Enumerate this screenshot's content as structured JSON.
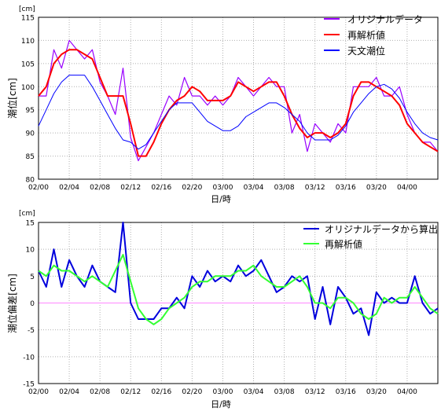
{
  "colors": {
    "original": "#9900ff",
    "reanalysis_top": "#ff0000",
    "astronomical": "#0000ff",
    "original_deviation": "#0000dd",
    "reanalysis_bottom": "#33ff33",
    "zero_line": "#ff88ff",
    "grid": "#b0b0b0"
  },
  "chart_data": [
    {
      "type": "line",
      "unit": "[cm]",
      "ylabel": "潮位[cm]",
      "xlabel": "日/時",
      "ylim": [
        80,
        115
      ],
      "yticks": [
        80,
        85,
        90,
        95,
        100,
        105,
        110,
        115
      ],
      "xlim": [
        0,
        78
      ],
      "x_tick_labels": [
        "02/00",
        "02/04",
        "02/08",
        "02/12",
        "02/16",
        "02/20",
        "03/00",
        "03/04",
        "03/08",
        "03/12",
        "03/16",
        "03/20",
        "04/00"
      ],
      "x_tick_step_hours": 6,
      "grid": true,
      "legend_position": "top-right",
      "series": [
        {
          "name": "オリジナルデータ",
          "color_key": "original",
          "x": [
            0,
            1.5,
            3,
            4.5,
            6,
            7.5,
            9,
            10.5,
            12,
            13.5,
            15,
            16.5,
            18,
            19.5,
            21,
            22.5,
            24,
            25.5,
            27,
            28.5,
            30,
            31.5,
            33,
            34.5,
            36,
            37.5,
            39,
            40.5,
            42,
            43.5,
            45,
            46.5,
            48,
            49.5,
            51,
            52.5,
            54,
            55.5,
            57,
            58.5,
            60,
            61.5,
            63,
            64.5,
            66,
            67.5,
            69,
            70.5,
            72,
            73.5,
            75,
            76.5,
            78
          ],
          "values": [
            98,
            98,
            108,
            104,
            110,
            108,
            106,
            108,
            101,
            98,
            94,
            104,
            89,
            84,
            87,
            90,
            94,
            98,
            96,
            102,
            98,
            98,
            96,
            98,
            96,
            98,
            102,
            100,
            98,
            100,
            102,
            100,
            100,
            90,
            94,
            86,
            92,
            90,
            88,
            92,
            90,
            100,
            100,
            100,
            102,
            98,
            98,
            100,
            94,
            90,
            88,
            88,
            86
          ]
        },
        {
          "name": "再解析値",
          "color_key": "reanalysis_top",
          "x": [
            0,
            1.5,
            3,
            4.5,
            6,
            7.5,
            9,
            10.5,
            12,
            13.5,
            15,
            16.5,
            18,
            19.5,
            21,
            22.5,
            24,
            25.5,
            27,
            28.5,
            30,
            31.5,
            33,
            34.5,
            36,
            37.5,
            39,
            40.5,
            42,
            43.5,
            45,
            46.5,
            48,
            49.5,
            51,
            52.5,
            54,
            55.5,
            57,
            58.5,
            60,
            61.5,
            63,
            64.5,
            66,
            67.5,
            69,
            70.5,
            72,
            73.5,
            75,
            76.5,
            78
          ],
          "values": [
            98,
            100,
            105,
            107,
            108,
            108,
            107,
            106,
            102,
            98,
            98,
            98,
            92,
            85,
            85,
            88,
            92,
            95,
            97,
            98,
            100,
            99,
            97,
            97,
            97,
            98,
            101,
            100,
            99,
            100,
            101,
            101,
            98,
            94,
            91,
            89,
            90,
            90,
            89,
            90,
            92,
            98,
            101,
            101,
            100,
            99,
            98,
            96,
            92,
            90,
            88,
            87,
            86
          ]
        },
        {
          "name": "天文潮位",
          "color_key": "astronomical",
          "x": [
            0,
            1.5,
            3,
            4.5,
            6,
            7.5,
            9,
            10.5,
            12,
            13.5,
            15,
            16.5,
            18,
            19.5,
            21,
            22.5,
            24,
            25.5,
            27,
            28.5,
            30,
            31.5,
            33,
            34.5,
            36,
            37.5,
            39,
            40.5,
            42,
            43.5,
            45,
            46.5,
            48,
            49.5,
            51,
            52.5,
            54,
            55.5,
            57,
            58.5,
            60,
            61.5,
            63,
            64.5,
            66,
            67.5,
            69,
            70.5,
            72,
            73.5,
            75,
            76.5,
            78
          ],
          "values": [
            91.5,
            95,
            98.5,
            101,
            102.5,
            102.5,
            102.5,
            100,
            97,
            94,
            91,
            88.5,
            88,
            86.5,
            87.5,
            90,
            92.5,
            95,
            96.5,
            96.5,
            96.5,
            94.5,
            92.5,
            91.5,
            90.5,
            90.5,
            91.5,
            93.5,
            94.5,
            95.5,
            96.5,
            96.5,
            95.5,
            94,
            92.5,
            90,
            88.5,
            88.5,
            88.5,
            89.5,
            91.5,
            94.5,
            96.5,
            98.5,
            100,
            100.5,
            99.5,
            97.5,
            94.5,
            92,
            90,
            89,
            88.5
          ]
        }
      ]
    },
    {
      "type": "line",
      "unit": "[cm]",
      "ylabel": "潮位偏差[cm]",
      "xlabel": "日/時",
      "ylim": [
        -15,
        15
      ],
      "yticks": [
        -15,
        -10,
        -5,
        0,
        5,
        10,
        15
      ],
      "xlim": [
        0,
        78
      ],
      "x_tick_labels": [
        "02/00",
        "02/04",
        "02/08",
        "02/12",
        "02/16",
        "02/20",
        "03/00",
        "03/04",
        "03/08",
        "03/12",
        "03/16",
        "03/20",
        "04/00"
      ],
      "x_tick_step_hours": 6,
      "grid": true,
      "legend_position": "top-right",
      "zero_line": true,
      "series": [
        {
          "name": "オリジナルデータから算出",
          "color_key": "original_deviation",
          "x": [
            0,
            1.5,
            3,
            4.5,
            6,
            7.5,
            9,
            10.5,
            12,
            13.5,
            15,
            16.5,
            18,
            19.5,
            21,
            22.5,
            24,
            25.5,
            27,
            28.5,
            30,
            31.5,
            33,
            34.5,
            36,
            37.5,
            39,
            40.5,
            42,
            43.5,
            45,
            46.5,
            48,
            49.5,
            51,
            52.5,
            54,
            55.5,
            57,
            58.5,
            60,
            61.5,
            63,
            64.5,
            66,
            67.5,
            69,
            70.5,
            72,
            73.5,
            75,
            76.5,
            78
          ],
          "values": [
            6,
            3,
            10,
            3,
            8,
            5,
            3,
            7,
            4,
            3,
            2,
            15,
            0,
            -3,
            -3,
            -3,
            -1,
            -1,
            1,
            -1,
            5,
            3,
            6,
            4,
            5,
            4,
            7,
            5,
            6,
            8,
            5,
            2,
            3,
            5,
            4,
            5,
            -3,
            3,
            -4,
            3,
            1,
            -2,
            -1,
            -6,
            2,
            0,
            1,
            0,
            0,
            5,
            0,
            -2,
            -1
          ]
        },
        {
          "name": "再解析値",
          "color_key": "reanalysis_bottom",
          "x": [
            0,
            1.5,
            3,
            4.5,
            6,
            7.5,
            9,
            10.5,
            12,
            13.5,
            15,
            16.5,
            18,
            19.5,
            21,
            22.5,
            24,
            25.5,
            27,
            28.5,
            30,
            31.5,
            33,
            34.5,
            36,
            37.5,
            39,
            40.5,
            42,
            43.5,
            45,
            46.5,
            48,
            49.5,
            51,
            52.5,
            54,
            55.5,
            57,
            58.5,
            60,
            61.5,
            63,
            64.5,
            66,
            67.5,
            69,
            70.5,
            72,
            73.5,
            75,
            76.5,
            78
          ],
          "values": [
            6,
            5,
            7,
            6,
            6,
            5,
            4,
            5,
            4,
            3,
            6,
            9,
            4,
            -1,
            -3,
            -4,
            -3,
            -1,
            0,
            1,
            3,
            4,
            4,
            5,
            5,
            5,
            6,
            6,
            7,
            5,
            4,
            3,
            3,
            4,
            5,
            3,
            0,
            0,
            -1,
            1,
            1,
            0,
            -2,
            -3,
            -2,
            1,
            0,
            1,
            1,
            3,
            1,
            -1,
            -2
          ]
        }
      ]
    }
  ]
}
